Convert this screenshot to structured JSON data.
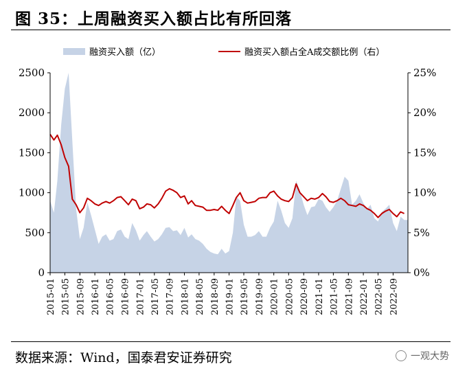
{
  "header": {
    "title": "图 35：上周融资买入额占比有所回落"
  },
  "footer": {
    "source": "数据来源：Wind，国泰君安证券研究",
    "watermark": "一观大势"
  },
  "chart_data": {
    "type": "area",
    "legend_placement": "top",
    "x_tick_labels": [
      "2015-01",
      "2015-05",
      "2015-09",
      "2016-01",
      "2016-05",
      "2016-09",
      "2017-01",
      "2017-05",
      "2017-09",
      "2018-01",
      "2018-05",
      "2018-09",
      "2019-01",
      "2019-05",
      "2019-09",
      "2020-01",
      "2020-05",
      "2020-09",
      "2021-01",
      "2021-05",
      "2021-09",
      "2022-01",
      "2022-05",
      "2022-09"
    ],
    "y_left": {
      "ticks": [
        0,
        500,
        1000,
        1500,
        2000,
        2500
      ],
      "ylim": [
        0,
        2500
      ]
    },
    "y_right": {
      "ticks": [
        "0%",
        "5%",
        "10%",
        "15%",
        "20%",
        "25%"
      ],
      "ylim": [
        0,
        25
      ]
    },
    "grid": false,
    "colors": {
      "area": "#c6d3e6",
      "line": "#c00000"
    },
    "series": [
      {
        "name": "融资买入额（亿）",
        "axis": "left",
        "kind": "area",
        "points": [
          [
            "2015-01",
            900
          ],
          [
            "2015-02",
            750
          ],
          [
            "2015-03",
            1150
          ],
          [
            "2015-04",
            1850
          ],
          [
            "2015-05",
            2300
          ],
          [
            "2015-06",
            2500
          ],
          [
            "2015-07",
            1650
          ],
          [
            "2015-08",
            800
          ],
          [
            "2015-09",
            420
          ],
          [
            "2015-10",
            560
          ],
          [
            "2015-11",
            880
          ],
          [
            "2015-12",
            720
          ],
          [
            "2016-01",
            540
          ],
          [
            "2016-02",
            360
          ],
          [
            "2016-03",
            450
          ],
          [
            "2016-04",
            480
          ],
          [
            "2016-05",
            400
          ],
          [
            "2016-06",
            420
          ],
          [
            "2016-07",
            520
          ],
          [
            "2016-08",
            540
          ],
          [
            "2016-09",
            450
          ],
          [
            "2016-10",
            420
          ],
          [
            "2016-11",
            620
          ],
          [
            "2016-12",
            530
          ],
          [
            "2017-01",
            400
          ],
          [
            "2017-02",
            470
          ],
          [
            "2017-03",
            520
          ],
          [
            "2017-04",
            450
          ],
          [
            "2017-05",
            390
          ],
          [
            "2017-06",
            420
          ],
          [
            "2017-07",
            480
          ],
          [
            "2017-08",
            560
          ],
          [
            "2017-09",
            570
          ],
          [
            "2017-10",
            520
          ],
          [
            "2017-11",
            530
          ],
          [
            "2017-12",
            470
          ],
          [
            "2018-01",
            560
          ],
          [
            "2018-02",
            440
          ],
          [
            "2018-03",
            480
          ],
          [
            "2018-04",
            420
          ],
          [
            "2018-05",
            400
          ],
          [
            "2018-06",
            360
          ],
          [
            "2018-07",
            300
          ],
          [
            "2018-08",
            260
          ],
          [
            "2018-09",
            240
          ],
          [
            "2018-10",
            230
          ],
          [
            "2018-11",
            300
          ],
          [
            "2018-12",
            240
          ],
          [
            "2019-01",
            270
          ],
          [
            "2019-02",
            500
          ],
          [
            "2019-03",
            950
          ],
          [
            "2019-04",
            900
          ],
          [
            "2019-05",
            600
          ],
          [
            "2019-06",
            450
          ],
          [
            "2019-07",
            450
          ],
          [
            "2019-08",
            470
          ],
          [
            "2019-09",
            520
          ],
          [
            "2019-10",
            450
          ],
          [
            "2019-11",
            450
          ],
          [
            "2019-12",
            560
          ],
          [
            "2020-01",
            640
          ],
          [
            "2020-02",
            900
          ],
          [
            "2020-03",
            780
          ],
          [
            "2020-04",
            620
          ],
          [
            "2020-05",
            560
          ],
          [
            "2020-06",
            680
          ],
          [
            "2020-07",
            1150
          ],
          [
            "2020-08",
            1020
          ],
          [
            "2020-09",
            850
          ],
          [
            "2020-10",
            720
          ],
          [
            "2020-11",
            820
          ],
          [
            "2020-12",
            830
          ],
          [
            "2021-01",
            920
          ],
          [
            "2021-02",
            900
          ],
          [
            "2021-03",
            820
          ],
          [
            "2021-04",
            760
          ],
          [
            "2021-05",
            820
          ],
          [
            "2021-06",
            900
          ],
          [
            "2021-07",
            1050
          ],
          [
            "2021-08",
            1200
          ],
          [
            "2021-09",
            1150
          ],
          [
            "2021-10",
            850
          ],
          [
            "2021-11",
            900
          ],
          [
            "2021-12",
            980
          ],
          [
            "2022-01",
            870
          ],
          [
            "2022-02",
            800
          ],
          [
            "2022-03",
            850
          ],
          [
            "2022-04",
            680
          ],
          [
            "2022-05",
            640
          ],
          [
            "2022-06",
            760
          ],
          [
            "2022-07",
            800
          ],
          [
            "2022-08",
            850
          ],
          [
            "2022-09",
            620
          ],
          [
            "2022-10",
            520
          ],
          [
            "2022-11",
            700
          ],
          [
            "2022-12",
            660
          ]
        ]
      },
      {
        "name": "融资买入额占全A成交额比例（右）",
        "axis": "right",
        "kind": "line",
        "points": [
          [
            "2015-01",
            17.3
          ],
          [
            "2015-02",
            16.6
          ],
          [
            "2015-03",
            17.2
          ],
          [
            "2015-04",
            16.0
          ],
          [
            "2015-05",
            14.4
          ],
          [
            "2015-06",
            13.3
          ],
          [
            "2015-07",
            9.2
          ],
          [
            "2015-08",
            8.5
          ],
          [
            "2015-09",
            7.5
          ],
          [
            "2015-10",
            8.1
          ],
          [
            "2015-11",
            9.3
          ],
          [
            "2015-12",
            9.0
          ],
          [
            "2016-01",
            8.6
          ],
          [
            "2016-02",
            8.4
          ],
          [
            "2016-03",
            8.7
          ],
          [
            "2016-04",
            8.9
          ],
          [
            "2016-05",
            8.7
          ],
          [
            "2016-06",
            9.0
          ],
          [
            "2016-07",
            9.4
          ],
          [
            "2016-08",
            9.5
          ],
          [
            "2016-09",
            9.0
          ],
          [
            "2016-10",
            8.5
          ],
          [
            "2016-11",
            9.2
          ],
          [
            "2016-12",
            9.0
          ],
          [
            "2017-01",
            8.0
          ],
          [
            "2017-02",
            8.2
          ],
          [
            "2017-03",
            8.6
          ],
          [
            "2017-04",
            8.5
          ],
          [
            "2017-05",
            8.1
          ],
          [
            "2017-06",
            8.6
          ],
          [
            "2017-07",
            9.3
          ],
          [
            "2017-08",
            10.2
          ],
          [
            "2017-09",
            10.5
          ],
          [
            "2017-10",
            10.3
          ],
          [
            "2017-11",
            10.0
          ],
          [
            "2017-12",
            9.4
          ],
          [
            "2018-01",
            9.6
          ],
          [
            "2018-02",
            8.6
          ],
          [
            "2018-03",
            9.0
          ],
          [
            "2018-04",
            8.4
          ],
          [
            "2018-05",
            8.3
          ],
          [
            "2018-06",
            8.2
          ],
          [
            "2018-07",
            7.8
          ],
          [
            "2018-08",
            7.8
          ],
          [
            "2018-09",
            7.9
          ],
          [
            "2018-10",
            7.8
          ],
          [
            "2018-11",
            8.3
          ],
          [
            "2018-12",
            7.8
          ],
          [
            "2019-01",
            7.4
          ],
          [
            "2019-02",
            8.4
          ],
          [
            "2019-03",
            9.4
          ],
          [
            "2019-04",
            10.0
          ],
          [
            "2019-05",
            9.0
          ],
          [
            "2019-06",
            8.7
          ],
          [
            "2019-07",
            8.8
          ],
          [
            "2019-08",
            8.9
          ],
          [
            "2019-09",
            9.3
          ],
          [
            "2019-10",
            9.4
          ],
          [
            "2019-11",
            9.4
          ],
          [
            "2019-12",
            10.0
          ],
          [
            "2020-01",
            10.2
          ],
          [
            "2020-02",
            9.6
          ],
          [
            "2020-03",
            9.2
          ],
          [
            "2020-04",
            9.0
          ],
          [
            "2020-05",
            8.9
          ],
          [
            "2020-06",
            9.4
          ],
          [
            "2020-07",
            11.1
          ],
          [
            "2020-08",
            10.0
          ],
          [
            "2020-09",
            9.5
          ],
          [
            "2020-10",
            9.0
          ],
          [
            "2020-11",
            9.3
          ],
          [
            "2020-12",
            9.2
          ],
          [
            "2021-01",
            9.4
          ],
          [
            "2021-02",
            9.9
          ],
          [
            "2021-03",
            9.5
          ],
          [
            "2021-04",
            8.9
          ],
          [
            "2021-05",
            8.8
          ],
          [
            "2021-06",
            9.0
          ],
          [
            "2021-07",
            9.3
          ],
          [
            "2021-08",
            9.0
          ],
          [
            "2021-09",
            8.5
          ],
          [
            "2021-10",
            8.4
          ],
          [
            "2021-11",
            8.3
          ],
          [
            "2021-12",
            8.6
          ],
          [
            "2022-01",
            8.4
          ],
          [
            "2022-02",
            8.0
          ],
          [
            "2022-03",
            7.8
          ],
          [
            "2022-04",
            7.4
          ],
          [
            "2022-05",
            6.9
          ],
          [
            "2022-06",
            7.4
          ],
          [
            "2022-07",
            7.7
          ],
          [
            "2022-08",
            7.9
          ],
          [
            "2022-09",
            7.4
          ],
          [
            "2022-10",
            7.0
          ],
          [
            "2022-11",
            7.6
          ],
          [
            "2022-12",
            7.4
          ]
        ]
      }
    ]
  }
}
